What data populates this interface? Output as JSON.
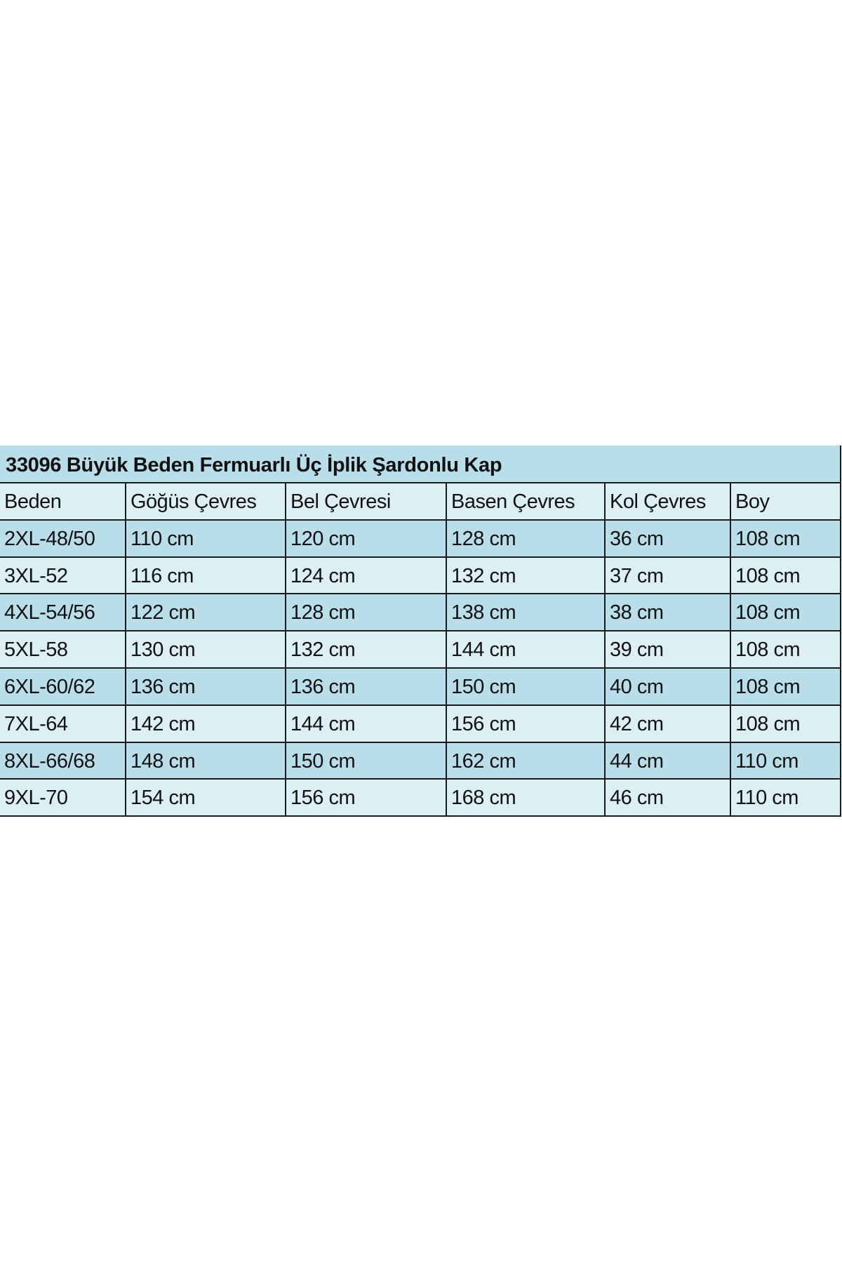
{
  "table": {
    "title": "33096 Büyük Beden Fermuarlı Üç İplik Şardonlu Kap",
    "headers": [
      "Beden",
      "Göğüs Çevres",
      "Bel Çevresi",
      "Basen Çevres",
      "Kol Çevres",
      "Boy"
    ],
    "rows": [
      [
        "2XL-48/50",
        "110 cm",
        "120 cm",
        "128 cm",
        "36 cm",
        "108 cm"
      ],
      [
        "3XL-52",
        "116 cm",
        "124 cm",
        "132 cm",
        "37 cm",
        "108 cm"
      ],
      [
        "4XL-54/56",
        "122 cm",
        "128 cm",
        "138 cm",
        "38 cm",
        "108 cm"
      ],
      [
        "5XL-58",
        "130 cm",
        "132 cm",
        "144 cm",
        "39 cm",
        "108 cm"
      ],
      [
        "6XL-60/62",
        "136 cm",
        "136 cm",
        "150 cm",
        "40 cm",
        "108 cm"
      ],
      [
        "7XL-64",
        "142 cm",
        "144 cm",
        "156 cm",
        "42 cm",
        "108 cm"
      ],
      [
        "8XL-66/68",
        "148 cm",
        "150 cm",
        "162 cm",
        "44 cm",
        "110 cm"
      ],
      [
        "9XL-70",
        "154 cm",
        "156 cm",
        "168 cm",
        "46 cm",
        "110 cm"
      ]
    ]
  },
  "colors": {
    "band_dark": "#b9dde9",
    "band_light": "#dbeff5",
    "border": "#1a1a1a"
  }
}
